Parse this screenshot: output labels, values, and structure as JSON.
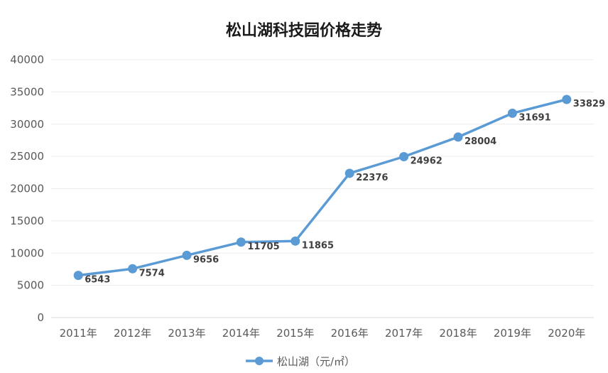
{
  "chart_data": {
    "type": "line",
    "title": "松山湖科技园价格走势",
    "xlabel": "",
    "ylabel": "",
    "categories": [
      "2011年",
      "2012年",
      "2013年",
      "2014年",
      "2015年",
      "2016年",
      "2017年",
      "2018年",
      "2019年",
      "2020年"
    ],
    "series": [
      {
        "name": "松山湖（元/㎡）",
        "values": [
          6543,
          7574,
          9656,
          11705,
          11865,
          22376,
          24962,
          28004,
          31691,
          33829
        ],
        "color": "#5b9bd5"
      }
    ],
    "ylim": [
      0,
      40000
    ],
    "yticks": [
      "0",
      "5000",
      "10000",
      "15000",
      "20000",
      "25000",
      "30000",
      "35000",
      "40000"
    ],
    "grid": true,
    "legend": "bottom",
    "data_labels": true
  }
}
